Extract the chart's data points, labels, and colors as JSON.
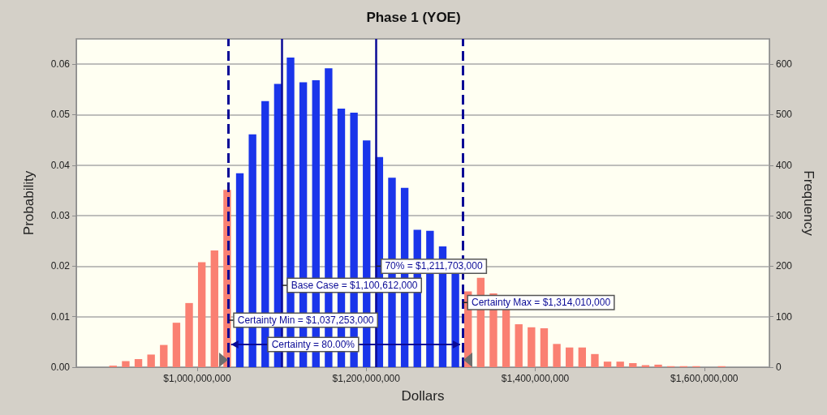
{
  "chart_data": {
    "type": "histogram",
    "title": "Phase 1 (YOE)",
    "xlabel": "Dollars",
    "ylabel": "Probability",
    "y2label": "Frequency",
    "bins": [
      893000000,
      908000000,
      923000000,
      938000000,
      953000000,
      968000000,
      983000000,
      998000000,
      1013000000,
      1028000000,
      1043000000,
      1058000000,
      1073000000,
      1088000000,
      1103000000,
      1118000000,
      1133000000,
      1148000000,
      1163000000,
      1178000000,
      1193000000,
      1208000000,
      1223000000,
      1238000000,
      1253000000,
      1268000000,
      1283000000,
      1298000000,
      1313000000,
      1328000000,
      1343000000,
      1358000000,
      1373000000,
      1388000000,
      1403000000,
      1418000000,
      1433000000,
      1448000000,
      1463000000,
      1478000000,
      1493000000,
      1508000000,
      1523000000,
      1538000000,
      1553000000,
      1568000000,
      1583000000,
      1598000000,
      1613000000,
      1628000000
    ],
    "values": [
      0.0003,
      0.0012,
      0.0016,
      0.0025,
      0.0044,
      0.0088,
      0.0127,
      0.0208,
      0.0231,
      0.0351,
      0.0384,
      0.0461,
      0.0527,
      0.0561,
      0.0613,
      0.0564,
      0.0568,
      0.0592,
      0.0512,
      0.0504,
      0.0449,
      0.0416,
      0.0375,
      0.0355,
      0.0272,
      0.027,
      0.0239,
      0.019,
      0.015,
      0.0177,
      0.0146,
      0.0114,
      0.0085,
      0.0079,
      0.0077,
      0.0046,
      0.0039,
      0.0039,
      0.0026,
      0.0011,
      0.0011,
      0.0008,
      0.0004,
      0.0005,
      0.0002,
      0.0002,
      0.0002,
      0,
      0.0002
    ],
    "colors": [
      "#fa8072",
      "#fa8072",
      "#fa8072",
      "#fa8072",
      "#fa8072",
      "#fa8072",
      "#fa8072",
      "#fa8072",
      "#fa8072",
      "#fa8072",
      "#1a35ea",
      "#1a35ea",
      "#1a35ea",
      "#1a35ea",
      "#1a35ea",
      "#1a35ea",
      "#1a35ea",
      "#1a35ea",
      "#1a35ea",
      "#1a35ea",
      "#1a35ea",
      "#1a35ea",
      "#1a35ea",
      "#1a35ea",
      "#1a35ea",
      "#1a35ea",
      "#1a35ea",
      "#1a35ea",
      "#fa8072",
      "#fa8072",
      "#fa8072",
      "#fa8072",
      "#fa8072",
      "#fa8072",
      "#fa8072",
      "#fa8072",
      "#fa8072",
      "#fa8072",
      "#fa8072",
      "#fa8072",
      "#fa8072",
      "#fa8072",
      "#fa8072",
      "#fa8072",
      "#fa8072",
      "#fa8072",
      "#fa8072",
      "#fa8072",
      "#fa8072"
    ],
    "xlim": [
      857000000,
      1677000000
    ],
    "xticks": [
      {
        "value": 1000000000,
        "label": "$1,000,000,000"
      },
      {
        "value": 1200000000,
        "label": "$1,200,000,000"
      },
      {
        "value": 1400000000,
        "label": "$1,400,000,000"
      },
      {
        "value": 1600000000,
        "label": "$1,600,000,000"
      }
    ],
    "ylim": [
      0,
      0.065
    ],
    "yticks": [
      {
        "value": 0,
        "label": "0.00"
      },
      {
        "value": 0.01,
        "label": "0.01"
      },
      {
        "value": 0.02,
        "label": "0.02"
      },
      {
        "value": 0.03,
        "label": "0.03"
      },
      {
        "value": 0.04,
        "label": "0.04"
      },
      {
        "value": 0.05,
        "label": "0.05"
      },
      {
        "value": 0.06,
        "label": "0.06"
      }
    ],
    "y2lim": [
      0,
      650
    ],
    "y2ticks": [
      0,
      100,
      200,
      300,
      400,
      500,
      600
    ],
    "grid": "y",
    "ref_lines": [
      {
        "axis": "x",
        "value": 1037253000,
        "label": "Certainty Min = $1,037,253,000",
        "color": "#0a0a96",
        "line_style": "dashed"
      },
      {
        "axis": "x",
        "value": 1314010000,
        "label": "Certainty Max = $1,314,010,000",
        "color": "#0a0a96",
        "line_style": "dashed"
      },
      {
        "axis": "x",
        "value": 1100612000,
        "label": "Base Case = $1,100,612,000",
        "color": "#0a0a96",
        "line_style": "solid"
      },
      {
        "axis": "x",
        "value": 1211703000,
        "label": "70% = $1,211,703,000",
        "color": "#0a0a96",
        "line_style": "solid"
      }
    ],
    "annotations": [
      "Certainty = 80.00%"
    ]
  }
}
